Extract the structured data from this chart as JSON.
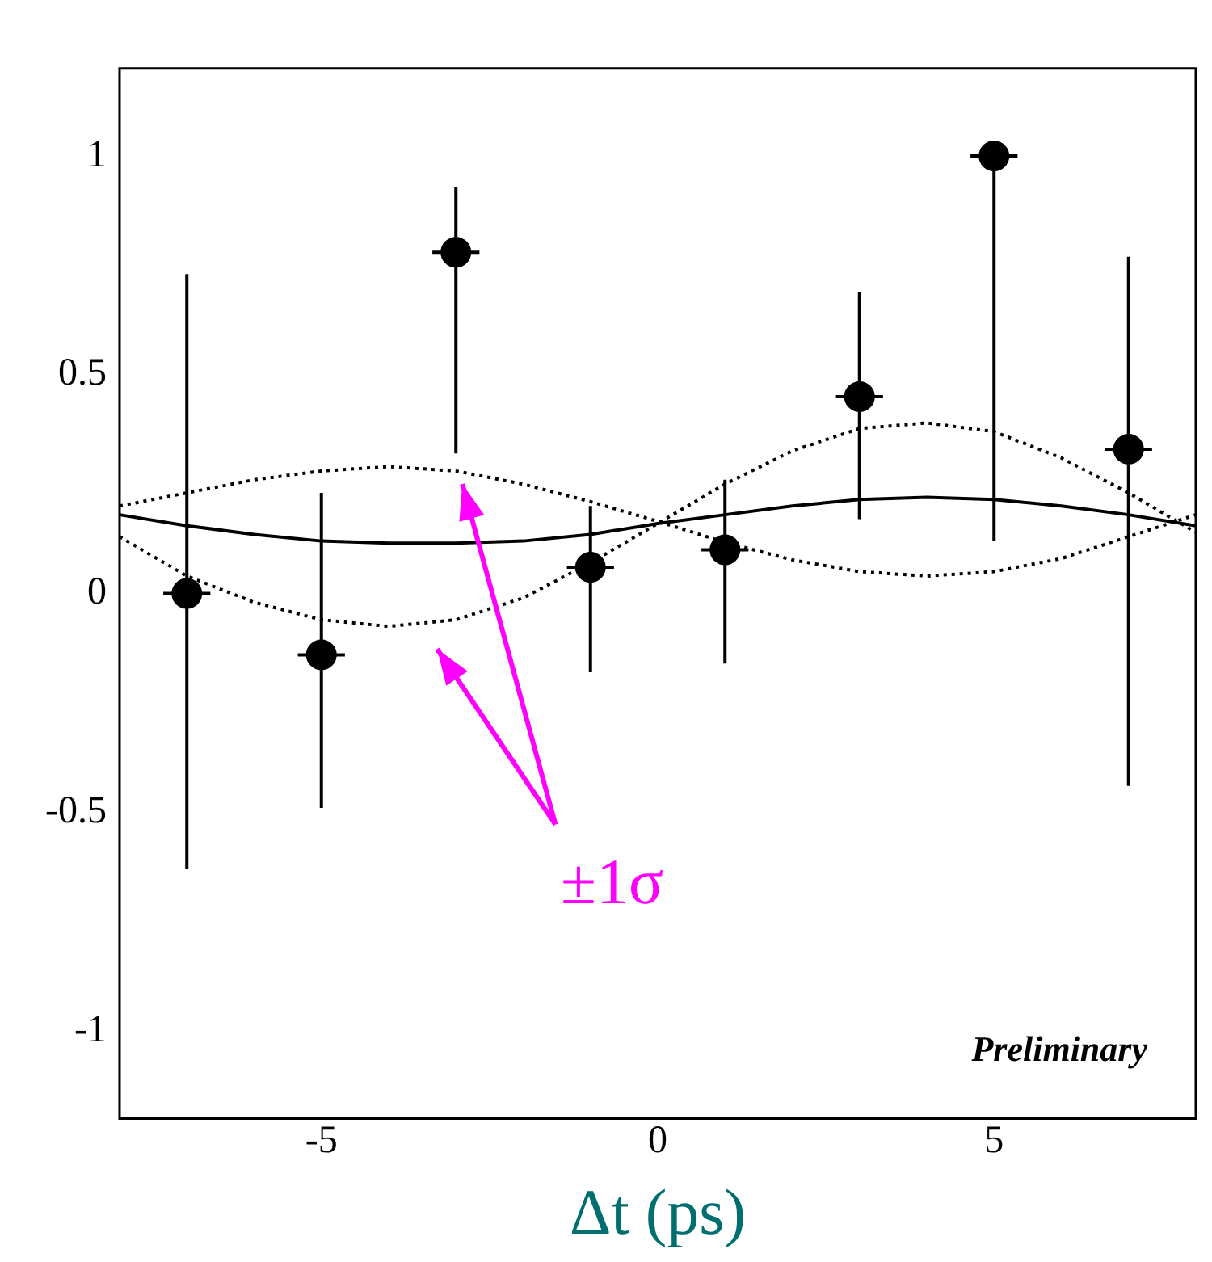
{
  "chart_data": {
    "type": "scatter",
    "xlabel": "Δt (ps)",
    "xlim": [
      -8,
      8
    ],
    "xticks": [
      -5,
      0,
      5
    ],
    "ylim": [
      -1.2,
      1.2
    ],
    "yticks": [
      -1,
      -0.5,
      0,
      0.5,
      1
    ],
    "grid": false,
    "legend": false,
    "marker": "circle",
    "series": [
      {
        "color": "#000000",
        "x": [
          -7,
          -5,
          -3,
          -1,
          1,
          3,
          5,
          7
        ],
        "values": [
          0,
          -0.14,
          0.78,
          0.06,
          0.1,
          0.45,
          1.0,
          0.33
        ],
        "errors": [
          [
            -0.63,
            0.73
          ],
          [
            -0.49,
            0.23
          ],
          [
            0.32,
            0.93
          ],
          [
            -0.18,
            0.2
          ],
          [
            -0.16,
            0.26
          ],
          [
            0.17,
            0.69
          ],
          [
            0.12,
            1.0
          ],
          [
            -0.44,
            0.77
          ]
        ],
        "xerrors": [
          0.35,
          0.35,
          0.35,
          0.35,
          0.35,
          0.35,
          0.35,
          0.35
        ]
      },
      {
        "type": "line",
        "color": "#000000",
        "line_style": "solid",
        "marker": "none",
        "x": [
          -8,
          -7,
          -6,
          -5,
          -4,
          -3,
          -2,
          -1,
          0,
          1,
          2,
          3,
          4,
          5,
          6,
          7,
          8
        ],
        "values": [
          0.18,
          0.155,
          0.135,
          0.12,
          0.115,
          0.115,
          0.12,
          0.135,
          0.16,
          0.18,
          0.2,
          0.215,
          0.22,
          0.215,
          0.2,
          0.18,
          0.155
        ]
      },
      {
        "type": "line",
        "color": "#000000",
        "line_style": "dotted",
        "marker": "none",
        "x": [
          -8,
          -7,
          -6,
          -5,
          -4,
          -3,
          -2,
          -1,
          0,
          1,
          2,
          3,
          4,
          5,
          6,
          7,
          8
        ],
        "values": [
          0.2,
          0.23,
          0.26,
          0.28,
          0.29,
          0.28,
          0.25,
          0.21,
          0.165,
          0.117,
          0.077,
          0.05,
          0.04,
          0.05,
          0.08,
          0.13,
          0.18
        ]
      },
      {
        "type": "line",
        "color": "#000000",
        "line_style": "dotted",
        "marker": "none",
        "x": [
          -8,
          -7,
          -6,
          -5,
          -4,
          -3,
          -2,
          -1,
          0,
          1,
          2,
          3,
          4,
          5,
          6,
          7,
          8
        ],
        "values": [
          0.13,
          0.04,
          -0.02,
          -0.06,
          -0.075,
          -0.06,
          -0.01,
          0.07,
          0.16,
          0.25,
          0.326,
          0.377,
          0.39,
          0.37,
          0.31,
          0.23,
          0.14
        ]
      }
    ],
    "annotations": [
      "±1σ",
      "Preliminary"
    ]
  }
}
